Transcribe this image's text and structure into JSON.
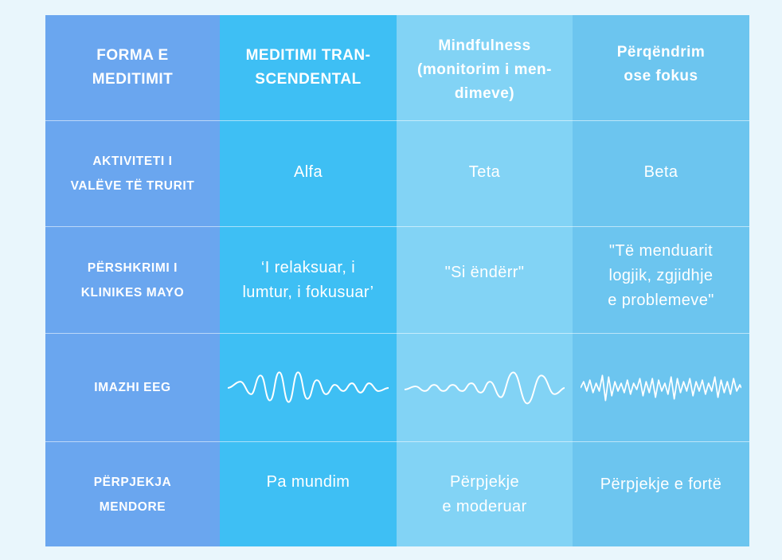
{
  "headers": {
    "col1": "FORMA E\nMEDITIMIT",
    "col2": "MEDITIMI TRAN-\nSCENDENTAL",
    "col3": "Mindfulness\n(monitorim i men-\ndimeve)",
    "col4": "Përqëndrim\nose fokus"
  },
  "rows": [
    {
      "label": "AKTIVITETI I\nVALËVE  TË TRURIT",
      "values": [
        "Alfa",
        "Teta",
        "Beta"
      ]
    },
    {
      "label": "PËRSHKRIMI I\nKLINIKES MAYO",
      "values": [
        "‘I relaksuar, i\nlumtur, i fokusuar’",
        "\"Si ëndërr\"",
        "\"Të menduarit\nlogjik, zgjidhje\ne problemeve\""
      ]
    },
    {
      "label": "IMAZHI EEG",
      "waves": [
        "alpha-wave-icon",
        "theta-wave-icon",
        "beta-wave-icon"
      ]
    },
    {
      "label": "PËRPJEKJA\nMENDORE",
      "values": [
        "Pa mundim",
        "Përpjekje\ne moderuar",
        "Përpjekje e fortë"
      ]
    }
  ],
  "colors": {
    "column1": "#6aa6ef",
    "column2": "#3ebff4",
    "column3": "#82d3f5",
    "column4": "#6cc5ef",
    "background": "#e9f6fc",
    "text": "#ffffff"
  }
}
